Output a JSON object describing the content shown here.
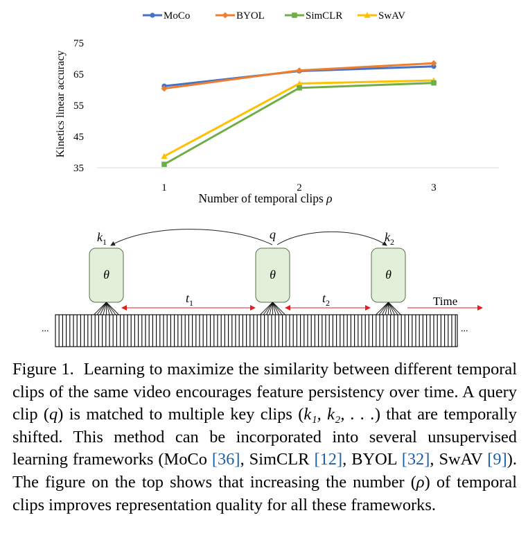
{
  "chart_data": {
    "type": "line",
    "categories": [
      "1",
      "2",
      "3"
    ],
    "x": [
      1,
      2,
      3
    ],
    "xlabel": "Number of temporal clips ρ",
    "ylabel": "Kinetics linear accuracy",
    "ylim": [
      35,
      75
    ],
    "yticks": [
      "35",
      "45",
      "55",
      "65",
      "75"
    ],
    "grid": false,
    "legend": "top",
    "series": [
      {
        "name": "MoCo",
        "values": [
          61.2,
          66.0,
          67.5
        ],
        "color": "#4472c4",
        "marker": "circle"
      },
      {
        "name": "BYOL",
        "values": [
          60.4,
          66.2,
          68.5
        ],
        "color": "#ed7d31",
        "marker": "diamond"
      },
      {
        "name": "SimCLR",
        "values": [
          36.1,
          60.6,
          62.2
        ],
        "color": "#70ad47",
        "marker": "square"
      },
      {
        "name": "SwAV",
        "values": [
          38.7,
          62.0,
          63.0
        ],
        "color": "#ffc000",
        "marker": "triangle"
      }
    ]
  },
  "diagram": {
    "key1": "k",
    "key1_sub": "1",
    "query": "q",
    "key2": "k",
    "key2_sub": "2",
    "theta": "θ",
    "t1": "t",
    "t1_sub": "1",
    "t2": "t",
    "t2_sub": "2",
    "time_label": "Time",
    "ellipsis": "..."
  },
  "caption": {
    "label": "Figure 1.",
    "text_a": "Learning to maximize the similarity between different temporal clips of the same video encourages feature persistency over time. A query clip (",
    "q": "q",
    "text_b": ") is matched to multiple key clips (",
    "keys": "k₁, k₂, . . .",
    "text_c": ") that are temporally shifted. This method can be incorporated into several unsupervised learning frameworks (MoCo ",
    "cite_moco": "[36]",
    "text_d": ", SimCLR ",
    "cite_simclr": "[12]",
    "text_e": ", BYOL ",
    "cite_byol": "[32]",
    "text_f": ", SwAV ",
    "cite_swav": "[9]",
    "text_g": "). The figure on the top shows that increasing the number (",
    "rho": "ρ",
    "text_h": ") of temporal clips improves representation quality for all these frameworks."
  }
}
